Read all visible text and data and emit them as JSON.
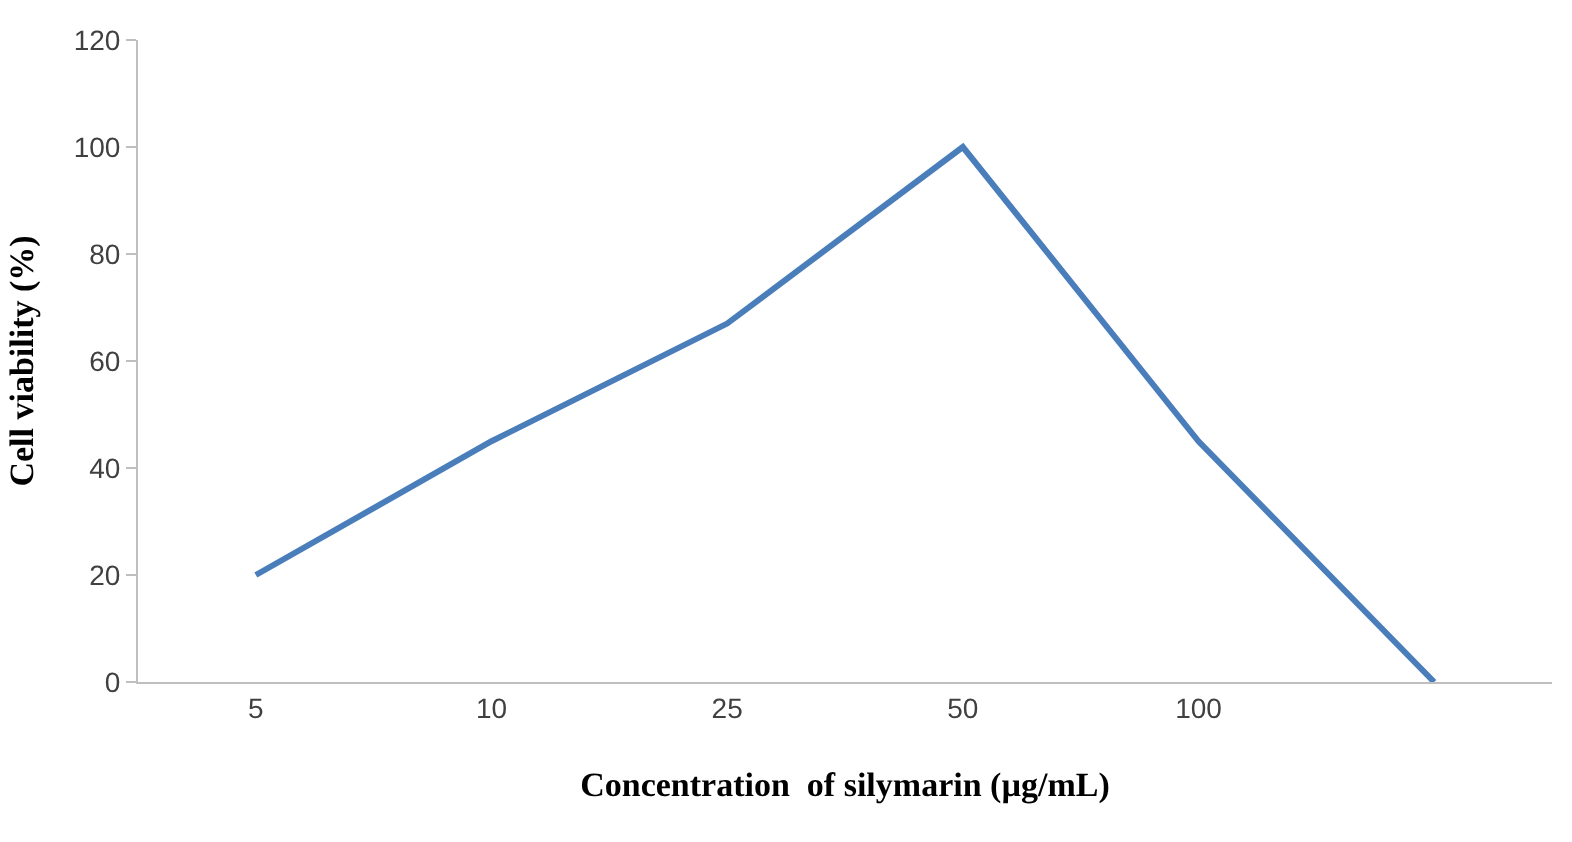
{
  "chart_data": {
    "type": "line",
    "xlabel": "Concentration  of silymarin (µg/mL)",
    "ylabel": "Cell viability (%)",
    "categories": [
      "5",
      "10",
      "25",
      "50",
      "100",
      null
    ],
    "series": [
      {
        "color": "#4a7ebb",
        "values": [
          20,
          45,
          67,
          100,
          45,
          0
        ]
      }
    ],
    "ylim": [
      0,
      120
    ],
    "yticks": [
      0,
      20,
      40,
      60,
      80,
      100,
      120
    ],
    "marker": "none",
    "line_style": "solid"
  }
}
